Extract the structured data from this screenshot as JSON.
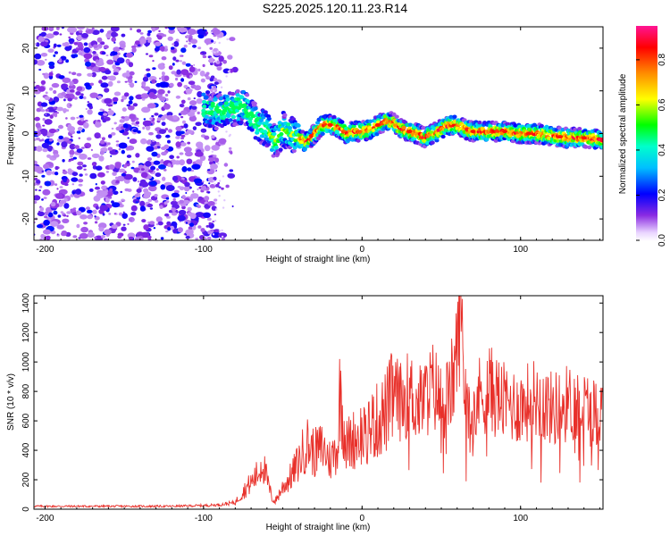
{
  "title": "S225.2025.120.11.23.R14",
  "colors": {
    "snr_line": "#e8302a",
    "scatter_low": "#c9a6ff",
    "scatter_high": "#6a1ee8",
    "axis": "#000000"
  },
  "chart_data": [
    {
      "type": "heatmap",
      "title": "S225.2025.120.11.23.R14",
      "xlabel": "Height of straight line (km)",
      "ylabel": "Frequency (Hz)",
      "xlim": [
        -207,
        152
      ],
      "ylim": [
        -25,
        25
      ],
      "xticks": [
        -200,
        -100,
        0,
        100
      ],
      "yticks": [
        -20,
        -10,
        0,
        10,
        20
      ],
      "grid": false,
      "colorbar": {
        "label": "Normalized spectral amplitude",
        "range": [
          0,
          0.95
        ],
        "ticks": [
          0.0,
          0.2,
          0.4,
          0.6,
          0.8
        ],
        "colormap": "rainbow (purple → blue → cyan → green → yellow → orange → red → magenta)"
      },
      "regions": [
        {
          "name": "noise",
          "x_range": [
            -207,
            -90
          ],
          "freq_range": [
            -25,
            25
          ],
          "amplitude": [
            0.0,
            0.15
          ]
        },
        {
          "name": "signal",
          "x_range": [
            -100,
            152
          ],
          "amplitude_peak": 0.9
        }
      ],
      "signal_track": {
        "x": [
          -100,
          -90,
          -80,
          -75,
          -70,
          -65,
          -60,
          -55,
          -50,
          -45,
          -40,
          -35,
          -30,
          -25,
          -20,
          -15,
          -10,
          -5,
          0,
          5,
          10,
          15,
          20,
          25,
          30,
          35,
          40,
          45,
          50,
          55,
          60,
          65,
          70,
          80,
          90,
          100,
          110,
          120,
          130,
          140,
          150
        ],
        "frequency": [
          6,
          5,
          6,
          6.5,
          4,
          2,
          1,
          -2,
          1,
          0,
          -1,
          -2,
          0,
          2,
          2,
          1.5,
          0,
          0.5,
          0.5,
          1,
          2,
          3,
          2.5,
          1,
          0.5,
          0,
          -1,
          0,
          1,
          2,
          2,
          1,
          0.5,
          0.5,
          0.5,
          0,
          0,
          -0.5,
          -1,
          -1,
          -1.5
        ]
      }
    },
    {
      "type": "line",
      "xlabel": "Height of straight line (km)",
      "ylabel": "SNR (10 * v/v)",
      "xlim": [
        -207,
        152
      ],
      "ylim": [
        0,
        1450
      ],
      "xticks": [
        -200,
        -100,
        0,
        100
      ],
      "yticks": [
        0,
        200,
        400,
        600,
        800,
        1000,
        1200,
        1400
      ],
      "grid": false,
      "series": [
        {
          "x": [
            -207,
            -180,
            -150,
            -120,
            -100,
            -90,
            -80,
            -75,
            -70,
            -65,
            -63,
            -60,
            -57,
            -55,
            -50,
            -45,
            -40,
            -35,
            -30,
            -25,
            -20,
            -15,
            -14,
            -10,
            -5,
            0,
            5,
            10,
            15,
            20,
            25,
            30,
            35,
            40,
            45,
            50,
            55,
            60,
            62,
            65,
            70,
            75,
            80,
            90,
            100,
            110,
            120,
            130,
            140,
            150,
            152
          ],
          "y": [
            20,
            20,
            20,
            20,
            25,
            30,
            45,
            120,
            180,
            250,
            330,
            200,
            80,
            50,
            150,
            220,
            320,
            450,
            380,
            420,
            330,
            440,
            820,
            430,
            480,
            520,
            560,
            600,
            660,
            780,
            720,
            800,
            700,
            760,
            840,
            720,
            760,
            1050,
            1450,
            800,
            700,
            780,
            820,
            720,
            700,
            760,
            680,
            720,
            700,
            640,
            700
          ]
        }
      ]
    }
  ]
}
